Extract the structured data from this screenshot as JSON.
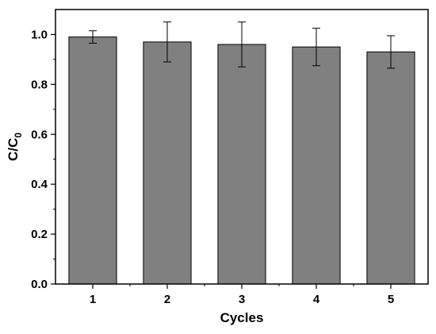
{
  "chart_data": {
    "type": "bar",
    "categories": [
      "1",
      "2",
      "3",
      "4",
      "5"
    ],
    "values": [
      0.99,
      0.97,
      0.96,
      0.95,
      0.93
    ],
    "errors": [
      0.025,
      0.08,
      0.09,
      0.075,
      0.065
    ],
    "xlabel": "Cycles",
    "ylabel": {
      "base": "C/C",
      "subscript": "0"
    },
    "ylim": [
      0,
      1.1
    ],
    "yticks": [
      0.0,
      0.2,
      0.4,
      0.6,
      0.8,
      1.0
    ],
    "ytick_labels": [
      "0.0",
      "0.2",
      "0.4",
      "0.6",
      "0.8",
      "1.0"
    ],
    "bar_color": "#808080",
    "grid": false,
    "legend": "none"
  }
}
